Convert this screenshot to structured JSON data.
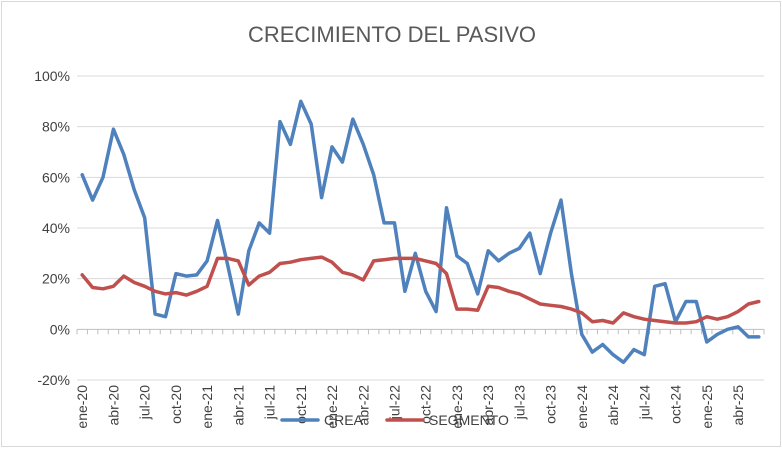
{
  "chart_data": {
    "type": "line",
    "title": "CRECIMIENTO DEL PASIVO",
    "xlabel": "",
    "ylabel": "",
    "ylim": [
      -0.2,
      1.0
    ],
    "y_ticks": [
      "100%",
      "80%",
      "60%",
      "40%",
      "20%",
      "0%",
      "-20%"
    ],
    "grid": "horizontal",
    "legend_position": "bottom",
    "x_tick_labels": [
      "ene-20",
      "abr-20",
      "jul-20",
      "oct-20",
      "ene-21",
      "abr-21",
      "jul-21",
      "oct-21",
      "ene-22",
      "abr-22",
      "jul-22",
      "oct-22",
      "ene-23",
      "abr-23",
      "jul-23",
      "oct-23",
      "ene-24",
      "abr-24",
      "jul-24",
      "oct-24",
      "ene-25",
      "abr-25"
    ],
    "x": [
      "ene-20",
      "feb-20",
      "mar-20",
      "abr-20",
      "may-20",
      "jun-20",
      "jul-20",
      "ago-20",
      "sep-20",
      "oct-20",
      "nov-20",
      "dic-20",
      "ene-21",
      "feb-21",
      "mar-21",
      "abr-21",
      "may-21",
      "jun-21",
      "jul-21",
      "ago-21",
      "sep-21",
      "oct-21",
      "nov-21",
      "dic-21",
      "ene-22",
      "feb-22",
      "mar-22",
      "abr-22",
      "may-22",
      "jun-22",
      "jul-22",
      "ago-22",
      "sep-22",
      "oct-22",
      "nov-22",
      "dic-22",
      "ene-23",
      "feb-23",
      "mar-23",
      "abr-23",
      "may-23",
      "jun-23",
      "jul-23",
      "ago-23",
      "sep-23",
      "oct-23",
      "nov-23",
      "dic-23",
      "ene-24",
      "feb-24",
      "mar-24",
      "abr-24",
      "may-24",
      "jun-24",
      "jul-24",
      "ago-24",
      "sep-24",
      "oct-24",
      "nov-24",
      "dic-24",
      "ene-25",
      "feb-25",
      "mar-25",
      "abr-25",
      "may-25",
      "jun-25"
    ],
    "series": [
      {
        "name": "CREA",
        "color": "#4f81bd",
        "values": [
          0.61,
          0.51,
          0.6,
          0.79,
          0.69,
          0.55,
          0.44,
          0.06,
          0.05,
          0.22,
          0.21,
          0.215,
          0.27,
          0.43,
          0.25,
          0.06,
          0.31,
          0.42,
          0.38,
          0.82,
          0.73,
          0.9,
          0.81,
          0.52,
          0.72,
          0.66,
          0.83,
          0.73,
          0.61,
          0.42,
          0.42,
          0.15,
          0.3,
          0.15,
          0.07,
          0.48,
          0.29,
          0.26,
          0.14,
          0.31,
          0.27,
          0.3,
          0.32,
          0.38,
          0.22,
          0.38,
          0.51,
          0.22,
          -0.02,
          -0.09,
          -0.06,
          -0.1,
          -0.13,
          -0.08,
          -0.1,
          0.17,
          0.18,
          0.03,
          0.11,
          0.11,
          -0.05,
          -0.02,
          0.0,
          0.01,
          -0.03,
          -0.03
        ]
      },
      {
        "name": "SEGMENTO",
        "color": "#c0504d",
        "values": [
          0.215,
          0.165,
          0.16,
          0.17,
          0.21,
          0.185,
          0.17,
          0.15,
          0.14,
          0.145,
          0.135,
          0.15,
          0.17,
          0.28,
          0.28,
          0.27,
          0.175,
          0.21,
          0.225,
          0.26,
          0.265,
          0.275,
          0.28,
          0.285,
          0.265,
          0.225,
          0.215,
          0.195,
          0.27,
          0.275,
          0.28,
          0.28,
          0.28,
          0.27,
          0.26,
          0.22,
          0.08,
          0.08,
          0.075,
          0.17,
          0.165,
          0.15,
          0.14,
          0.12,
          0.1,
          0.095,
          0.09,
          0.08,
          0.065,
          0.03,
          0.035,
          0.025,
          0.065,
          0.05,
          0.04,
          0.035,
          0.03,
          0.025,
          0.025,
          0.03,
          0.05,
          0.04,
          0.05,
          0.07,
          0.1,
          0.11
        ]
      }
    ]
  }
}
